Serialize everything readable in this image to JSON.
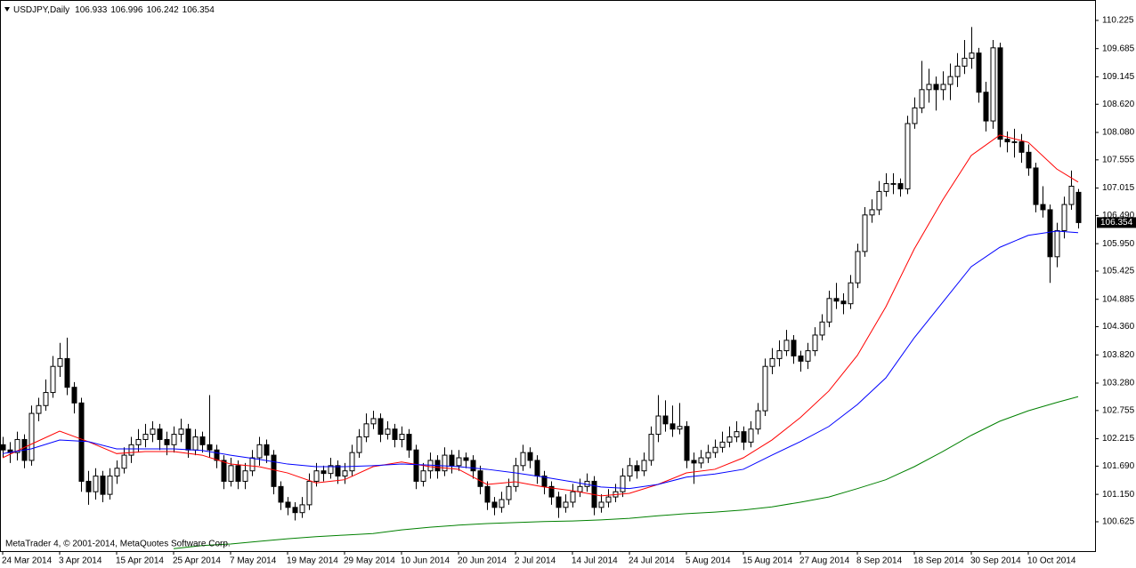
{
  "chart_data": {
    "type": "candlestick",
    "title": "USDJPY,Daily",
    "footer": "MetaTrader 4, © 2001-2014, MetaQuotes Software Corp.",
    "up_color": "#ffffff",
    "down_color": "#000000",
    "open": [
      102.1,
      102,
      101.95,
      102.2,
      101.8,
      102.7,
      102.85,
      103.1,
      103.6,
      103.75,
      103.2,
      102.9,
      101.4,
      101.2,
      101.5,
      101.15,
      101.5,
      101.65,
      101.9,
      102.1,
      102.2,
      102.3,
      102.4,
      102.2,
      102.1,
      102.3,
      102.4,
      102,
      102.25,
      102.1,
      102,
      101.8,
      101.4,
      101.7,
      101.4,
      101.6,
      101.85,
      102.1,
      101.9,
      101.3,
      101,
      100.9,
      100.8,
      100.95,
      101.4,
      101.6,
      101.55,
      101.7,
      101.5,
      101.6,
      101.95,
      102.25,
      102.5,
      102.6,
      102.3,
      102.4,
      102.2,
      102.3,
      102,
      101.4,
      101.6,
      101.8,
      101.6,
      101.9,
      101.7,
      101.85,
      101.8,
      101.6,
      101.3,
      101,
      100.9,
      101.05,
      101.3,
      101.7,
      101.95,
      101.8,
      101.5,
      101.3,
      101.1,
      100.9,
      101,
      101.2,
      101.3,
      101.4,
      100.9,
      101,
      101.1,
      101.2,
      101.5,
      101.7,
      101.6,
      101.8,
      102.3,
      102.65,
      102.5,
      102.4,
      102.45,
      101.8,
      101.75,
      101.85,
      101.95,
      102.05,
      102.15,
      102.25,
      102.35,
      102.15,
      102.4,
      102.75,
      103.6,
      103.75,
      103.9,
      104.1,
      103.8,
      103.7,
      103.9,
      104.2,
      104.45,
      104.9,
      104.85,
      104.8,
      105.2,
      105.8,
      106.5,
      106.6,
      106.95,
      107.1,
      107.1,
      107,
      108.25,
      108.55,
      108.9,
      109,
      108.9,
      109,
      109.15,
      109.35,
      109.5,
      109.6,
      108.85,
      108.3,
      109.7,
      107.95,
      107.9,
      107.9,
      107.7,
      107.4,
      106.7,
      106.6,
      105.7,
      106.2,
      106.7,
      106.933
    ],
    "high": [
      102.25,
      102.15,
      102.35,
      102.3,
      102.85,
      103,
      103.35,
      103.8,
      104.05,
      104.15,
      103.3,
      103,
      101.6,
      101.65,
      101.6,
      101.65,
      101.8,
      102.05,
      102.25,
      102.4,
      102.5,
      102.55,
      102.5,
      102.35,
      102.45,
      102.6,
      102.5,
      102.4,
      102.35,
      103.05,
      102.1,
      101.9,
      101.85,
      101.8,
      101.75,
      102,
      102.25,
      102.2,
      102,
      101.4,
      101.1,
      101,
      101.1,
      101.55,
      101.75,
      101.7,
      101.85,
      101.8,
      101.75,
      102.1,
      102.4,
      102.7,
      102.75,
      102.7,
      102.55,
      102.5,
      102.45,
      102.4,
      102.1,
      101.75,
      101.95,
      101.9,
      102.05,
      102,
      102,
      101.95,
      101.9,
      101.7,
      101.4,
      101.1,
      101.2,
      101.45,
      101.85,
      102.1,
      102.05,
      101.9,
      101.6,
      101.4,
      101.2,
      101.15,
      101.35,
      101.45,
      101.55,
      101.5,
      101.15,
      101.25,
      101.35,
      101.65,
      101.85,
      101.8,
      101.95,
      102.45,
      103.05,
      102.95,
      102.85,
      102.9,
      102.55,
      101.95,
      102,
      102.1,
      102.2,
      102.35,
      102.45,
      102.55,
      102.45,
      102.55,
      102.9,
      103.75,
      103.95,
      104.1,
      104.3,
      104.2,
      103.9,
      104.05,
      104.35,
      104.6,
      105.05,
      105.2,
      105,
      105.35,
      105.95,
      106.65,
      106.8,
      107.15,
      107.3,
      107.3,
      107.2,
      108.4,
      108.75,
      109.45,
      109.3,
      109.15,
      109.25,
      109.4,
      109.6,
      109.85,
      110.1,
      109.7,
      109.05,
      109.85,
      109.8,
      108.1,
      108.15,
      108.05,
      107.85,
      107.5,
      107.05,
      106.7,
      106.35,
      106.85,
      107.35,
      106.996
    ],
    "low": [
      101.85,
      101.75,
      101.8,
      101.65,
      101.7,
      102.55,
      102.75,
      103,
      103.4,
      103.05,
      102.7,
      101.2,
      100.95,
      101.05,
      101,
      101.05,
      101.35,
      101.55,
      101.75,
      101.95,
      102.05,
      102.15,
      102,
      101.9,
      101.95,
      102.15,
      101.85,
      101.9,
      101.95,
      101.85,
      101.65,
      101.25,
      101.3,
      101.25,
      101.25,
      101.5,
      101.7,
      101.75,
      101.15,
      100.85,
      100.75,
      100.65,
      100.7,
      100.85,
      101.3,
      101.4,
      101.45,
      101.35,
      101.35,
      101.5,
      101.85,
      102.15,
      102.4,
      102.15,
      102.2,
      102.05,
      102.05,
      101.85,
      101.25,
      101.3,
      101.45,
      101.45,
      101.5,
      101.55,
      101.6,
      101.65,
      101.45,
      101.15,
      100.85,
      100.75,
      100.8,
      100.95,
      101.2,
      101.6,
      101.65,
      101.35,
      101.15,
      100.95,
      100.7,
      100.8,
      100.9,
      101.1,
      101.2,
      100.75,
      100.8,
      100.9,
      101,
      101.1,
      101.4,
      101.45,
      101.5,
      101.7,
      102.15,
      102.35,
      102.25,
      102.3,
      101.65,
      101.35,
      101.65,
      101.75,
      101.85,
      101.95,
      102.05,
      102.15,
      102,
      102.05,
      102.3,
      102.65,
      103.45,
      103.6,
      103.8,
      103.65,
      103.5,
      103.55,
      103.8,
      104.1,
      104.35,
      104.7,
      104.6,
      104.7,
      105.1,
      105.7,
      106.35,
      106.5,
      106.85,
      106.9,
      106.85,
      106.9,
      108.15,
      108.45,
      108.65,
      108.5,
      108.7,
      108.7,
      108.95,
      109.2,
      109.3,
      108.65,
      108.1,
      108.15,
      107.8,
      107.7,
      107.6,
      107.5,
      107.25,
      106.55,
      106.45,
      105.2,
      105.5,
      106.05,
      106.6,
      106.242
    ],
    "close": [
      102,
      101.95,
      102.2,
      101.8,
      102.7,
      102.85,
      103.1,
      103.6,
      103.75,
      103.2,
      102.9,
      101.4,
      101.2,
      101.5,
      101.15,
      101.5,
      101.65,
      101.9,
      102.1,
      102.2,
      102.3,
      102.4,
      102.2,
      102.1,
      102.3,
      102.4,
      102,
      102.25,
      102.1,
      102,
      101.8,
      101.4,
      101.7,
      101.4,
      101.6,
      101.85,
      102.1,
      101.9,
      101.3,
      101,
      100.9,
      100.8,
      100.95,
      101.4,
      101.6,
      101.55,
      101.7,
      101.5,
      101.6,
      101.95,
      102.25,
      102.5,
      102.6,
      102.3,
      102.4,
      102.2,
      102.3,
      102,
      101.4,
      101.6,
      101.8,
      101.6,
      101.9,
      101.7,
      101.85,
      101.8,
      101.6,
      101.3,
      101,
      100.9,
      101.05,
      101.3,
      101.7,
      101.95,
      101.8,
      101.5,
      101.3,
      101.1,
      100.9,
      101,
      101.2,
      101.3,
      101.4,
      100.9,
      101,
      101.1,
      101.2,
      101.5,
      101.7,
      101.6,
      101.8,
      102.3,
      102.65,
      102.5,
      102.4,
      102.45,
      101.8,
      101.75,
      101.85,
      101.95,
      102.05,
      102.15,
      102.25,
      102.35,
      102.15,
      102.4,
      102.75,
      103.6,
      103.75,
      103.9,
      104.1,
      103.8,
      103.7,
      103.9,
      104.2,
      104.45,
      104.9,
      104.85,
      104.8,
      105.2,
      105.8,
      106.5,
      106.6,
      106.95,
      107.1,
      107.1,
      107,
      108.25,
      108.55,
      108.9,
      109,
      108.9,
      109,
      109.15,
      109.35,
      109.5,
      109.6,
      108.85,
      108.3,
      109.7,
      107.95,
      107.9,
      107.9,
      107.7,
      107.4,
      106.7,
      106.6,
      105.7,
      106.2,
      106.7,
      107.05,
      106.354
    ],
    "series": [
      {
        "color": "#ff0000",
        "x": [
          0,
          4,
          8,
          12,
          16,
          20,
          24,
          28,
          32,
          36,
          40,
          44,
          48,
          52,
          56,
          60,
          64,
          68,
          72,
          76,
          80,
          84,
          88,
          92,
          96,
          100,
          104,
          108,
          112,
          116,
          120,
          124,
          128,
          132,
          136,
          140,
          144,
          148,
          151
        ],
        "values": [
          101.85,
          102.11,
          102.36,
          102.16,
          101.93,
          101.97,
          101.97,
          101.9,
          101.73,
          101.68,
          101.56,
          101.37,
          101.43,
          101.68,
          101.77,
          101.68,
          101.63,
          101.34,
          101.39,
          101.29,
          101.22,
          101.12,
          101.17,
          101.34,
          101.56,
          101.63,
          101.85,
          102.19,
          102.62,
          103.13,
          103.81,
          104.74,
          105.85,
          106.79,
          107.64,
          108.03,
          107.89,
          107.38,
          107.13
        ]
      },
      {
        "color": "#0000ff",
        "x": [
          0,
          4,
          8,
          12,
          16,
          20,
          24,
          28,
          32,
          36,
          40,
          44,
          48,
          52,
          56,
          60,
          64,
          68,
          72,
          76,
          80,
          84,
          88,
          92,
          96,
          100,
          104,
          108,
          112,
          116,
          120,
          124,
          128,
          132,
          136,
          140,
          144,
          148,
          151
        ],
        "values": [
          101.93,
          102.02,
          102.19,
          102.16,
          102.02,
          102.02,
          102.02,
          101.99,
          101.9,
          101.82,
          101.73,
          101.68,
          101.68,
          101.7,
          101.73,
          101.71,
          101.68,
          101.63,
          101.56,
          101.48,
          101.39,
          101.29,
          101.26,
          101.34,
          101.48,
          101.54,
          101.63,
          101.9,
          102.16,
          102.45,
          102.87,
          103.38,
          104.15,
          104.83,
          105.51,
          105.88,
          106.11,
          106.19,
          106.16
        ]
      },
      {
        "color": "#008000",
        "x": [
          24,
          28,
          32,
          36,
          40,
          44,
          48,
          52,
          56,
          60,
          64,
          68,
          72,
          76,
          80,
          84,
          88,
          92,
          96,
          100,
          104,
          108,
          112,
          116,
          120,
          124,
          128,
          132,
          136,
          140,
          144,
          148,
          151
        ],
        "values": [
          100.11,
          100.17,
          100.2,
          100.25,
          100.3,
          100.34,
          100.37,
          100.4,
          100.47,
          100.52,
          100.56,
          100.59,
          100.61,
          100.63,
          100.64,
          100.66,
          100.69,
          100.74,
          100.78,
          100.81,
          100.85,
          100.91,
          101.0,
          101.1,
          101.26,
          101.43,
          101.68,
          101.97,
          102.28,
          102.55,
          102.75,
          102.91,
          103.02
        ]
      }
    ],
    "xlim": [
      -0.375,
      153.375
    ],
    "xticks": [
      {
        "value": 0,
        "label": "24 Mar 2014"
      },
      {
        "value": 8,
        "label": "3 Apr 2014"
      },
      {
        "value": 16,
        "label": "15 Apr 2014"
      },
      {
        "value": 24,
        "label": "25 Apr 2014"
      },
      {
        "value": 32,
        "label": "7 May 2014"
      },
      {
        "value": 40,
        "label": "19 May 2014"
      },
      {
        "value": 48,
        "label": "29 May 2014"
      },
      {
        "value": 56,
        "label": "10 Jun 2014"
      },
      {
        "value": 64,
        "label": "20 Jun 2014"
      },
      {
        "value": 72,
        "label": "2 Jul 2014"
      },
      {
        "value": 80,
        "label": "14 Jul 2014"
      },
      {
        "value": 88,
        "label": "24 Jul 2014"
      },
      {
        "value": 96,
        "label": "5 Aug 2014"
      },
      {
        "value": 104,
        "label": "15 Aug 2014"
      },
      {
        "value": 112,
        "label": "27 Aug 2014"
      },
      {
        "value": 120,
        "label": "8 Sep 2014"
      },
      {
        "value": 128,
        "label": "18 Sep 2014"
      },
      {
        "value": 136,
        "label": "30 Sep 2014"
      },
      {
        "value": 144,
        "label": "10 Oct 2014"
      }
    ],
    "ylim": [
      100.063,
      110.616
    ],
    "yticks": [
      110.225,
      109.685,
      109.145,
      {
        "value": 108.62,
        "label": "108.620"
      },
      {
        "value": 108.08,
        "label": "108.080"
      },
      107.555,
      107.015,
      {
        "value": 106.49,
        "label": "106.490"
      },
      {
        "value": 105.95,
        "label": "105.950"
      },
      105.425,
      104.885,
      {
        "value": 104.36,
        "label": "104.360"
      },
      {
        "value": 103.82,
        "label": "103.820"
      },
      {
        "value": 103.28,
        "label": "103.280"
      },
      102.755,
      102.215,
      {
        "value": 101.69,
        "label": "101.690"
      },
      {
        "value": 101.15,
        "label": "101.150"
      },
      100.625
    ],
    "grid": false
  }
}
